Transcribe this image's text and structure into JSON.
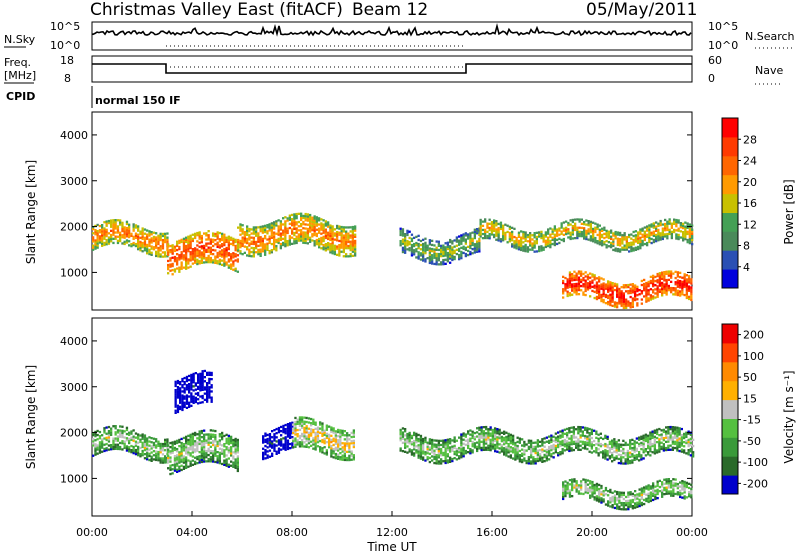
{
  "header": {
    "title": "Christmas Valley East (fitACF)",
    "beam": "Beam 12",
    "date": "05/May/2011"
  },
  "params": {
    "nsky_label": "N.Sky",
    "nsky_ticks": [
      "10^5",
      "10^0"
    ],
    "nsearch_label": "N.Search",
    "nsearch_ticks": [
      "10^5",
      "10^0"
    ],
    "freq_label_1": "Freq.",
    "freq_label_2": "[MHz]",
    "freq_ticks": [
      "18",
      "8"
    ],
    "nave_label": "Nave",
    "nave_ticks": [
      "60",
      "0"
    ],
    "cpid_label": "CPID",
    "cpid_text": "normal 150 IF"
  },
  "chart_data": [
    {
      "type": "heatmap",
      "name": "power",
      "ylabel": "Slant Range [km]",
      "yticks": [
        1000,
        2000,
        3000,
        4000
      ],
      "ylim": [
        180,
        4500
      ],
      "xlim": [
        0,
        24
      ],
      "colorbar": {
        "label": "Power [dB]",
        "ticks": [
          "4",
          "8",
          "12",
          "16",
          "20",
          "24",
          "28"
        ],
        "colors": [
          "#0000dd",
          "#2a50b4",
          "#4a8a5a",
          "#44a055",
          "#c8c000",
          "#ff9a00",
          "#ff6600",
          "#ff3a00",
          "#ff0000"
        ]
      },
      "regions": [
        {
          "t0": 0.0,
          "t1": 3.0,
          "r_mid": 1780,
          "r_width": 520,
          "level": 6
        },
        {
          "t0": 3.0,
          "t1": 5.8,
          "r_mid": 1450,
          "r_width": 700,
          "level": 7
        },
        {
          "t0": 5.8,
          "t1": 10.5,
          "r_mid": 1850,
          "r_width": 650,
          "level": 6
        },
        {
          "t0": 12.3,
          "t1": 15.5,
          "r_mid": 1600,
          "r_width": 500,
          "level": 4
        },
        {
          "t0": 15.5,
          "t1": 24.0,
          "r_mid": 1850,
          "r_width": 450,
          "level": 5
        },
        {
          "t0": 18.8,
          "t1": 24.0,
          "r_mid": 650,
          "r_width": 500,
          "level": 8
        }
      ]
    },
    {
      "type": "heatmap",
      "name": "velocity",
      "ylabel": "Slant Range [km]",
      "xlabel": "Time UT",
      "yticks": [
        1000,
        2000,
        3000,
        4000
      ],
      "ylim": [
        180,
        4500
      ],
      "xlim": [
        0,
        24
      ],
      "xticks": [
        "00:00",
        "04:00",
        "08:00",
        "12:00",
        "16:00",
        "20:00",
        "00:00"
      ],
      "colorbar": {
        "label": "Velocity [m s⁻¹]",
        "ticks": [
          "200",
          "100",
          "50",
          "15",
          "-15",
          "-50",
          "-100",
          "-200"
        ],
        "colors": [
          "#0000cc",
          "#2a6a2a",
          "#3a9a3a",
          "#55c040",
          "#c0c0c0",
          "#ffb000",
          "#ff8a00",
          "#ff4400",
          "#ee0000"
        ]
      },
      "regions": [
        {
          "t0": 0.0,
          "t1": 3.0,
          "r_mid": 1780,
          "r_width": 520,
          "level": 4
        },
        {
          "t0": 3.0,
          "t1": 5.8,
          "r_mid": 1600,
          "r_width": 700,
          "level": 4
        },
        {
          "t0": 3.3,
          "t1": 4.8,
          "r_mid": 2900,
          "r_width": 700,
          "level": 0
        },
        {
          "t0": 6.8,
          "t1": 8.0,
          "r_mid": 1850,
          "r_width": 550,
          "level": 0
        },
        {
          "t0": 8.0,
          "t1": 10.5,
          "r_mid": 1900,
          "r_width": 650,
          "level": 5
        },
        {
          "t0": 12.3,
          "t1": 24.0,
          "r_mid": 1750,
          "r_width": 500,
          "level": 4
        },
        {
          "t0": 18.8,
          "t1": 24.0,
          "r_mid": 700,
          "r_width": 400,
          "level": 4
        }
      ]
    }
  ]
}
